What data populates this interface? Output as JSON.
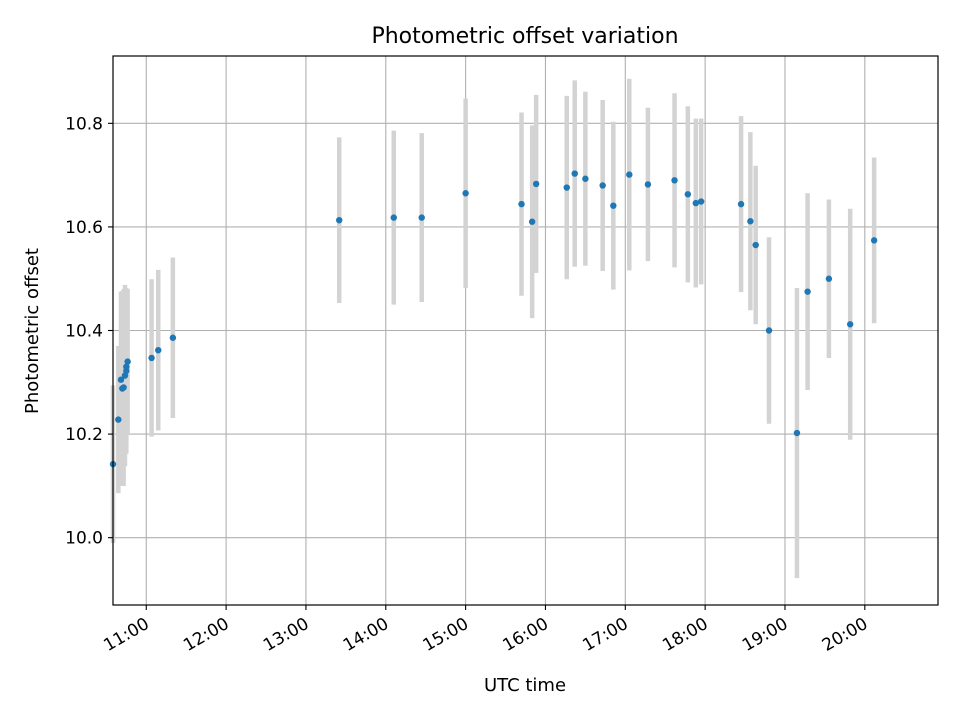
{
  "chart_data": {
    "type": "scatter",
    "title": "Photometric offset variation",
    "xlabel": "UTC time",
    "ylabel": "Photometric offset",
    "x_ticks": [
      "11:00",
      "12:00",
      "13:00",
      "14:00",
      "15:00",
      "16:00",
      "17:00",
      "18:00",
      "19:00",
      "20:00"
    ],
    "y_ticks": [
      "10.0",
      "10.2",
      "10.4",
      "10.6",
      "10.8"
    ],
    "xlim": [
      "10:35",
      "20:55"
    ],
    "ylim": [
      9.87,
      10.93
    ],
    "grid": true,
    "marker_color": "#1f77b4",
    "errorbar_color": "#d3d3d3",
    "points": [
      {
        "x": "10:35",
        "y": 10.142,
        "err": 0.152
      },
      {
        "x": "10:39",
        "y": 10.228,
        "err": 0.142
      },
      {
        "x": "10:41",
        "y": 10.305,
        "err": 0.17
      },
      {
        "x": "10:42",
        "y": 10.288,
        "err": 0.188
      },
      {
        "x": "10:43",
        "y": 10.29,
        "err": 0.19
      },
      {
        "x": "10:44",
        "y": 10.313,
        "err": 0.175
      },
      {
        "x": "10:45",
        "y": 10.322,
        "err": 0.16
      },
      {
        "x": "10:45",
        "y": 10.33,
        "err": 0.15
      },
      {
        "x": "10:46",
        "y": 10.34,
        "err": 0.14
      },
      {
        "x": "11:04",
        "y": 10.347,
        "err": 0.152
      },
      {
        "x": "11:09",
        "y": 10.362,
        "err": 0.155
      },
      {
        "x": "11:20",
        "y": 10.386,
        "err": 0.155
      },
      {
        "x": "13:25",
        "y": 10.613,
        "err": 0.16
      },
      {
        "x": "14:06",
        "y": 10.618,
        "err": 0.168
      },
      {
        "x": "14:27",
        "y": 10.618,
        "err": 0.163
      },
      {
        "x": "15:00",
        "y": 10.665,
        "err": 0.183
      },
      {
        "x": "15:42",
        "y": 10.644,
        "err": 0.177
      },
      {
        "x": "15:50",
        "y": 10.61,
        "err": 0.186
      },
      {
        "x": "15:53",
        "y": 10.683,
        "err": 0.172
      },
      {
        "x": "16:16",
        "y": 10.676,
        "err": 0.177
      },
      {
        "x": "16:22",
        "y": 10.703,
        "err": 0.18
      },
      {
        "x": "16:30",
        "y": 10.693,
        "err": 0.168
      },
      {
        "x": "16:43",
        "y": 10.68,
        "err": 0.165
      },
      {
        "x": "16:51",
        "y": 10.641,
        "err": 0.162
      },
      {
        "x": "17:03",
        "y": 10.701,
        "err": 0.185
      },
      {
        "x": "17:17",
        "y": 10.682,
        "err": 0.148
      },
      {
        "x": "17:37",
        "y": 10.69,
        "err": 0.168
      },
      {
        "x": "17:47",
        "y": 10.663,
        "err": 0.17
      },
      {
        "x": "17:53",
        "y": 10.646,
        "err": 0.163
      },
      {
        "x": "17:57",
        "y": 10.649,
        "err": 0.16
      },
      {
        "x": "18:27",
        "y": 10.644,
        "err": 0.17
      },
      {
        "x": "18:34",
        "y": 10.611,
        "err": 0.172
      },
      {
        "x": "18:38",
        "y": 10.565,
        "err": 0.153
      },
      {
        "x": "18:48",
        "y": 10.4,
        "err": 0.18
      },
      {
        "x": "19:09",
        "y": 10.202,
        "err": 0.28
      },
      {
        "x": "19:17",
        "y": 10.475,
        "err": 0.19
      },
      {
        "x": "19:33",
        "y": 10.5,
        "err": 0.153
      },
      {
        "x": "19:49",
        "y": 10.412,
        "err": 0.223
      },
      {
        "x": "20:07",
        "y": 10.574,
        "err": 0.16
      }
    ]
  }
}
